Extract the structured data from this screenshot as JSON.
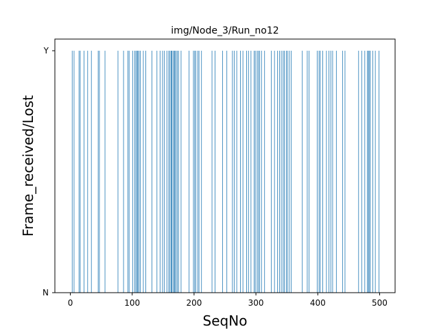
{
  "chart_data": {
    "type": "bar",
    "title": "img/Node_3/Run_no12",
    "xlabel": "SeqNo",
    "ylabel": "Frame_received/Lost",
    "xlim": [
      -25,
      525
    ],
    "ylim": [
      0,
      1
    ],
    "x_ticks": [
      0,
      100,
      200,
      300,
      400,
      500
    ],
    "y_ticks": [
      {
        "value": 0,
        "label": "N"
      },
      {
        "value": 1,
        "label": "Y"
      }
    ],
    "bar_color": "#1f77b4",
    "bar_width": 0.8,
    "grid": false,
    "series": [
      {
        "values_x": [
          3,
          6,
          14,
          16,
          22,
          28,
          34,
          45,
          47,
          56,
          77,
          86,
          93,
          95,
          101,
          104,
          106,
          108,
          109,
          111,
          113,
          118,
          122,
          132,
          140,
          145,
          149,
          152,
          156,
          159,
          161,
          163,
          164,
          166,
          168,
          169,
          171,
          173,
          175,
          179,
          192,
          199,
          201,
          203,
          206,
          208,
          212,
          229,
          234,
          246,
          253,
          262,
          265,
          269,
          275,
          279,
          285,
          288,
          292,
          297,
          299,
          302,
          304,
          306,
          309,
          314,
          325,
          330,
          335,
          338,
          341,
          344,
          346,
          349,
          351,
          354,
          357,
          375,
          383,
          386,
          399,
          402,
          404,
          408,
          414,
          418,
          421,
          424,
          430,
          440,
          444,
          466,
          471,
          476,
          480,
          482,
          483,
          485,
          489,
          493,
          499
        ],
        "values_y": 1
      }
    ]
  }
}
